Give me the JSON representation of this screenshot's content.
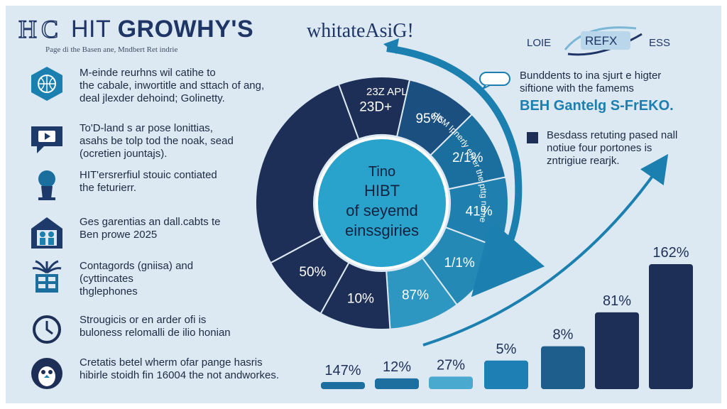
{
  "header": {
    "title_part1": "HIT ",
    "title_part2": "GROWHY'S",
    "title_part3": "whitateAsiG!",
    "subtitle": "Page di the Basen ane, Mndbert Ret indrie",
    "brand_left": "LOIE",
    "brand_right": "ESS",
    "brand_center": "REFX"
  },
  "left_items": [
    {
      "icon": "globe-badge-icon",
      "text": "M-einde reurhns wil catihe to\nthe cabale, inwortitle and sttach of ang,\ndeal jlexder dehoind; Golinetty."
    },
    {
      "icon": "video-chat-icon",
      "text": "To'D-land s ar pose lonittias,\nasahs be tolp tod the noak, sead\n(ocretien jountajs)."
    },
    {
      "icon": "person-icon",
      "text": "HIT'ersrerfiul stouic contiated\nthe feturierr."
    },
    {
      "icon": "house-group-icon",
      "text": "Ges garentias an dall.cabts te\nBen prowe 2025"
    },
    {
      "icon": "server-plant-icon",
      "text": "Contagords (gniisa) and\n(cyttincates\nthglephones"
    },
    {
      "icon": "clock-icon",
      "text": "Strougicis or en arder ofi is\nbuloness relomalli de ilio honian"
    },
    {
      "icon": "penguin-icon",
      "text": "Cretatis betel wherm ofar pange hasris\nhibirle stoidh fin 16004 the not andworkes."
    }
  ],
  "callout": {
    "text": "Bunddents to ina sjurt e higter\nsiftione with the famems",
    "emphasis": "BEH Gantelg S-FrEKO."
  },
  "note": {
    "text": "Besdass retuting pased nall\nnotiue four portones is\nzntrigiue rearjk."
  },
  "chart_data": [
    {
      "type": "pie",
      "center_text": [
        "Tino",
        "HIBT",
        "of seyemd",
        "einssgiries"
      ],
      "arc_label": "PEM Ipnerly erirer the pttg nome",
      "slices": [
        {
          "label": "23D+",
          "value": 1
        },
        {
          "label": "95%",
          "value": 1
        },
        {
          "label": "2/1%",
          "value": 1
        },
        {
          "label": "41%",
          "value": 1
        },
        {
          "label": "1/1%",
          "value": 1
        },
        {
          "label": "87%",
          "value": 1
        },
        {
          "label": "10%",
          "value": 1
        },
        {
          "label": "50%",
          "value": 1
        },
        {
          "label": "",
          "value": 3
        }
      ],
      "outer_label": "23Z APL",
      "colors": [
        "#1e2f57",
        "#17588a",
        "#1b6f9e",
        "#2187b4",
        "#2b9fc6",
        "#4fb6d8"
      ]
    },
    {
      "type": "bar",
      "categories": [
        "147%",
        "12%",
        "27%",
        "5%",
        "8%",
        "81%",
        "162%"
      ],
      "values": [
        4,
        6,
        7,
        16,
        24,
        43,
        70
      ],
      "colors": [
        "#1d6fa0",
        "#1d6fa0",
        "#4aa9cf",
        "#1d7fb3",
        "#1e5e8c",
        "#1e2f57",
        "#1e2f57"
      ],
      "ylim": [
        0,
        70
      ]
    }
  ]
}
